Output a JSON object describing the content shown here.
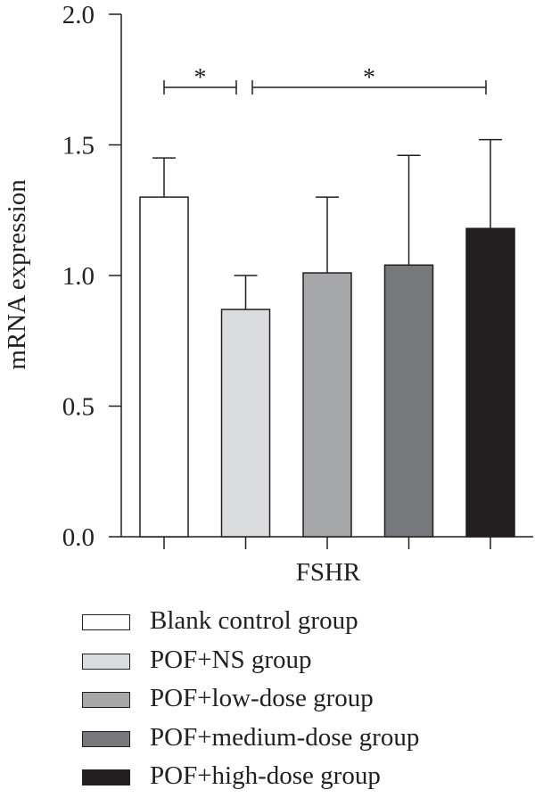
{
  "chart_data": {
    "type": "bar",
    "ylabel": "mRNA expression",
    "xlabel": "FSHR",
    "ylim": [
      0,
      2.0
    ],
    "yticks": [
      "0.0",
      "0.5",
      "1.0",
      "1.5",
      "2.0"
    ],
    "categories": [
      "Blank control group",
      "POF+NS group",
      "POF+low-dose group",
      "POF+medium-dose group",
      "POF+high-dose group"
    ],
    "values": [
      1.3,
      0.87,
      1.01,
      1.04,
      1.18
    ],
    "errors": [
      0.15,
      0.13,
      0.29,
      0.42,
      0.34
    ],
    "colors": [
      "#ffffff",
      "#dbdcde",
      "#a6a7a9",
      "#77787b",
      "#231f20"
    ],
    "significance": [
      {
        "from": 0,
        "to": 1,
        "label": "*"
      },
      {
        "from": 1,
        "to": 4,
        "label": "*"
      }
    ],
    "legend_position": "bottom"
  }
}
